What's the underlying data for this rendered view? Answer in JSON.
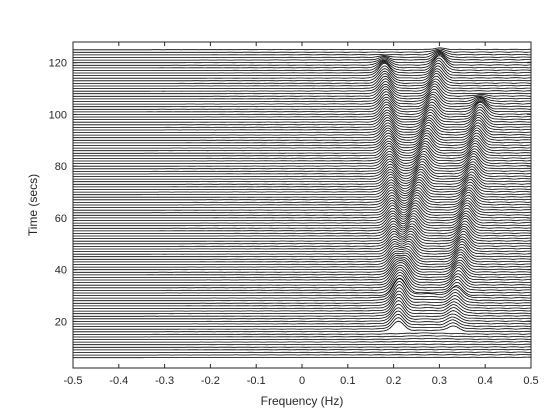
{
  "chart_data": {
    "type": "line",
    "subtype": "waterfall",
    "title": "",
    "xlabel": "Frequency (Hz)",
    "ylabel": "Time (secs)",
    "xlim": [
      -0.5,
      0.5
    ],
    "ylim": [
      2,
      128
    ],
    "x_ticks": [
      -0.5,
      -0.4,
      -0.3,
      -0.2,
      -0.1,
      0,
      0.1,
      0.2,
      0.3,
      0.4,
      0.5
    ],
    "x_tick_labels": [
      "-0.5",
      "-0.4",
      "-0.3",
      "-0.2",
      "-0.1",
      "0",
      "0.1",
      "0.2",
      "0.3",
      "0.4",
      "0.5"
    ],
    "y_ticks": [
      20,
      40,
      60,
      80,
      100,
      120
    ],
    "y_tick_labels": [
      "20",
      "40",
      "60",
      "80",
      "100",
      "120"
    ],
    "grid": false,
    "legend": "none",
    "line_color": "#000000",
    "trace_count": 120,
    "trace_time_range": [
      6,
      125
    ],
    "spectral_peaks": [
      {
        "start": [
          0.21,
          20
        ],
        "end": [
          0.18,
          115
        ]
      },
      {
        "start": [
          0.21,
          20
        ],
        "end": [
          0.3,
          118
        ]
      },
      {
        "start": [
          0.33,
          20
        ],
        "end": [
          0.39,
          100
        ]
      }
    ]
  }
}
